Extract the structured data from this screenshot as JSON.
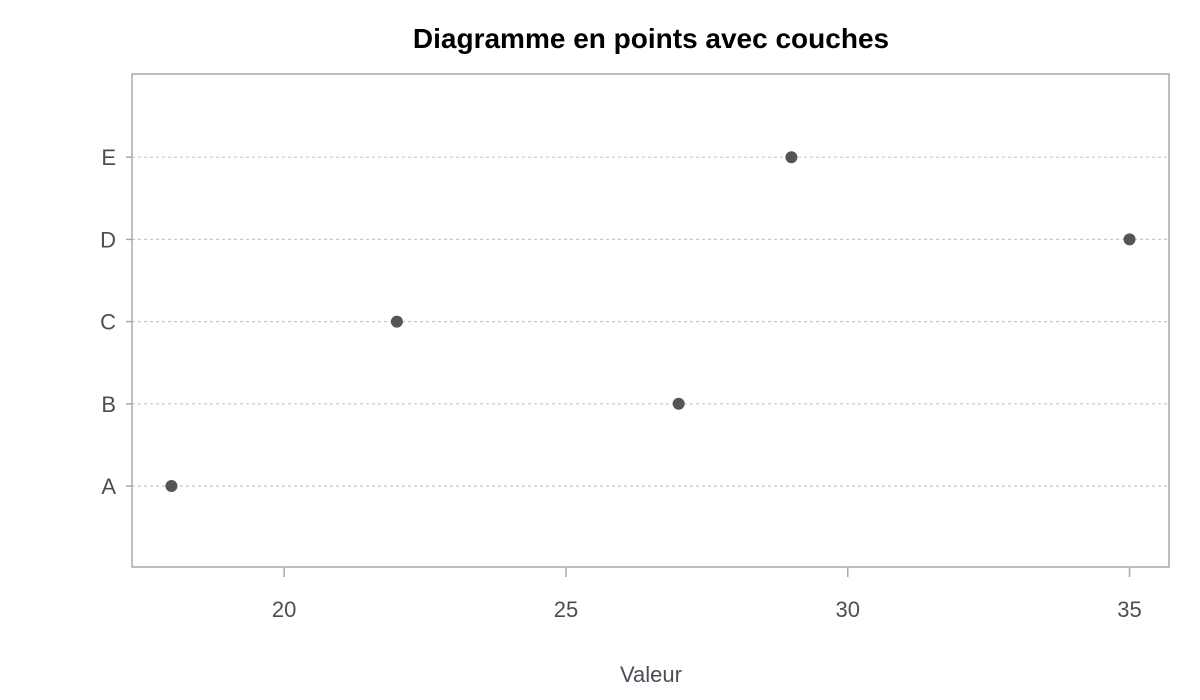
{
  "chart_data": {
    "type": "scatter",
    "title": "Diagramme en points avec couches",
    "xlabel": "Valeur",
    "ylabel": "",
    "categories": [
      "A",
      "B",
      "C",
      "D",
      "E"
    ],
    "values": [
      18,
      27,
      22,
      35,
      29
    ],
    "xlim": [
      17.3,
      35.7
    ],
    "xticks": [
      20,
      25,
      30,
      35
    ],
    "grid": "horizontal-dashed",
    "legend": "none",
    "colors": {
      "point": "#555555",
      "grid": "#c8c8c8",
      "frame": "#a2abb5",
      "text": "#4a4f57"
    }
  }
}
